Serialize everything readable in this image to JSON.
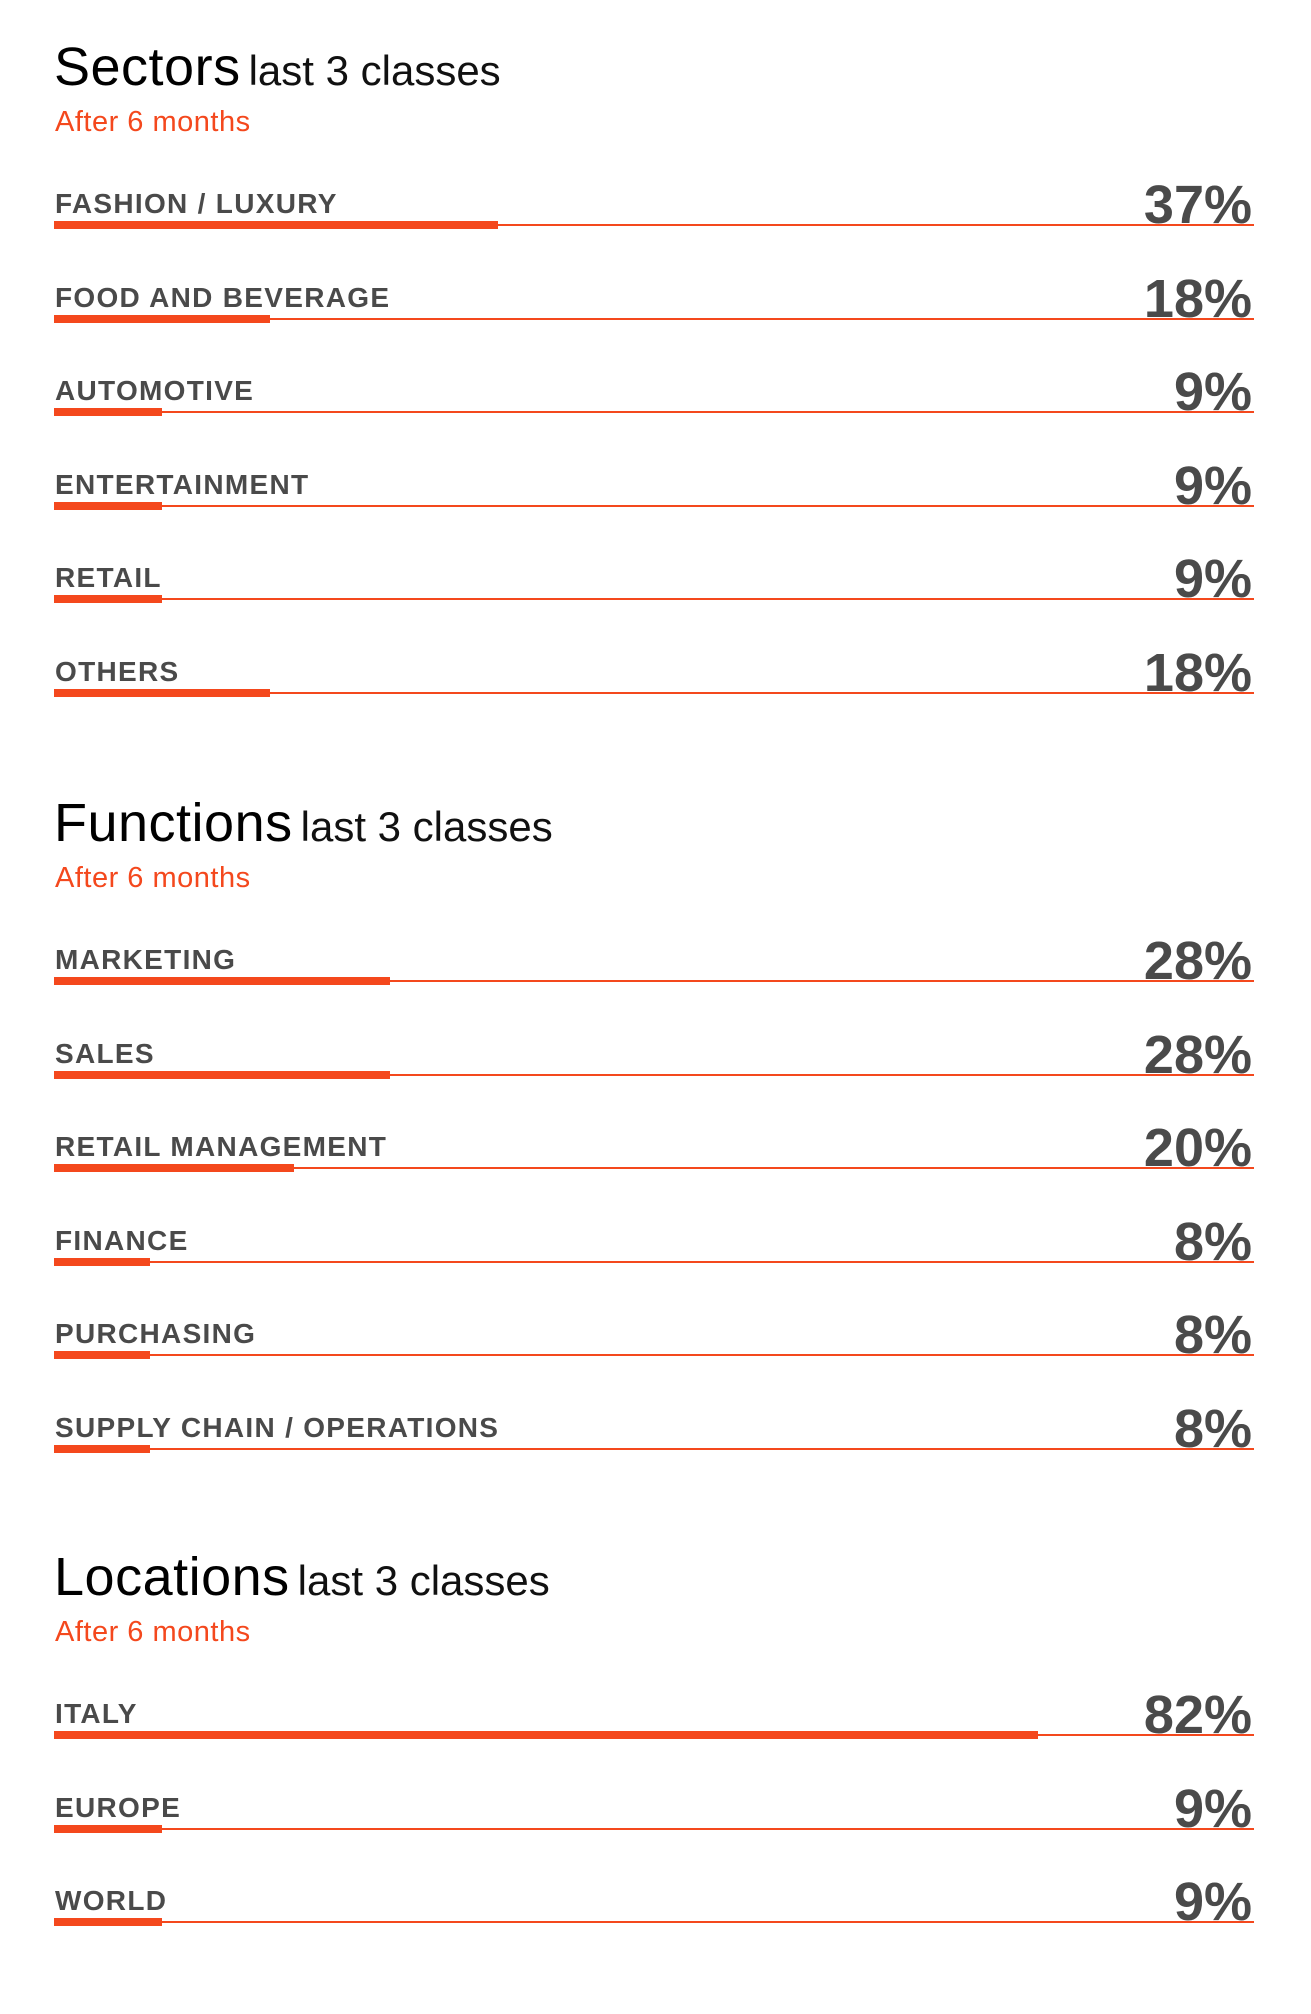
{
  "colors": {
    "accent": "#f4481d",
    "label": "#4a4a4a",
    "title": "#000000"
  },
  "chart_data": [
    {
      "type": "bar",
      "orientation": "horizontal",
      "title": "Sectors",
      "title_qualifier": "last 3 classes",
      "subtitle": "After 6 months",
      "unit": "%",
      "xlim": [
        0,
        100
      ],
      "categories": [
        "FASHION / LUXURY",
        "FOOD AND BEVERAGE",
        "AUTOMOTIVE",
        "ENTERTAINMENT",
        "RETAIL",
        "OTHERS"
      ],
      "values": [
        37,
        18,
        9,
        9,
        9,
        18
      ],
      "value_labels": [
        "37%",
        "18%",
        "9%",
        "9%",
        "9%",
        "18%"
      ]
    },
    {
      "type": "bar",
      "orientation": "horizontal",
      "title": "Functions",
      "title_qualifier": "last 3 classes",
      "subtitle": "After 6 months",
      "unit": "%",
      "xlim": [
        0,
        100
      ],
      "categories": [
        "MARKETING",
        "SALES",
        "RETAIL MANAGEMENT",
        "FINANCE",
        "PURCHASING",
        "SUPPLY CHAIN / OPERATIONS"
      ],
      "values": [
        28,
        28,
        20,
        8,
        8,
        8
      ],
      "value_labels": [
        "28%",
        "28%",
        "20%",
        "8%",
        "8%",
        "8%"
      ]
    },
    {
      "type": "bar",
      "orientation": "horizontal",
      "title": "Locations",
      "title_qualifier": "last 3 classes",
      "subtitle": "After 6 months",
      "unit": "%",
      "xlim": [
        0,
        100
      ],
      "categories": [
        "ITALY",
        "EUROPE",
        "WORLD"
      ],
      "values": [
        82,
        9,
        9
      ],
      "value_labels": [
        "82%",
        "9%",
        "9%"
      ]
    }
  ]
}
